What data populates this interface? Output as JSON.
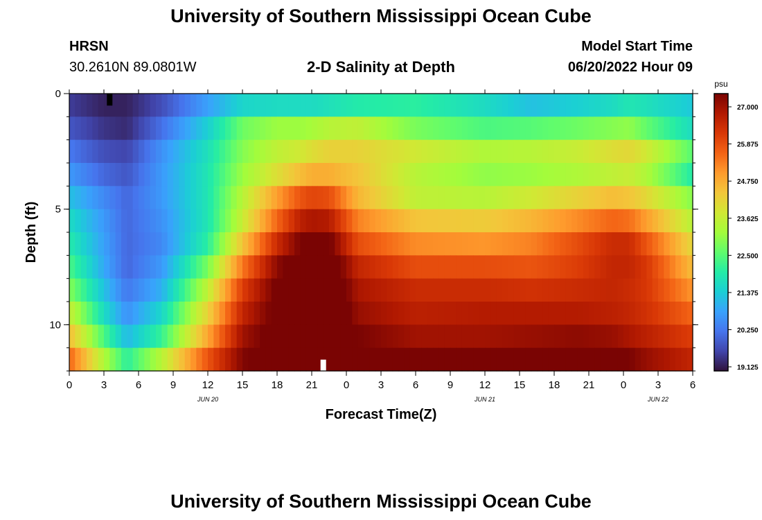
{
  "page": {
    "title": "University of Southern Mississippi Ocean Cube",
    "footer_title": "University of Southern Mississippi Ocean Cube",
    "station": "HRSN",
    "coordinates": "30.2610N  89.0801W",
    "plot_title": "2-D Salinity at Depth",
    "model_start_label": "Model Start Time",
    "model_start_value": "06/20/2022 Hour 09"
  },
  "chart_data": {
    "type": "heatmap",
    "title": "2-D Salinity at Depth",
    "xlabel": "Forecast Time(Z)",
    "ylabel": "Depth (ft)",
    "x_unit": "hours since 06/20 00Z",
    "xlim": [
      0,
      54
    ],
    "ylim": [
      12,
      0
    ],
    "x_ticks": [
      0,
      3,
      6,
      9,
      12,
      15,
      18,
      21,
      24,
      27,
      30,
      33,
      36,
      39,
      42,
      45,
      48,
      51,
      54
    ],
    "x_tick_labels": [
      "0",
      "3",
      "6",
      "9",
      "12",
      "15",
      "18",
      "21",
      "0",
      "3",
      "6",
      "9",
      "12",
      "15",
      "18",
      "21",
      "0",
      "3",
      "6"
    ],
    "date_labels": [
      {
        "x": 12,
        "text": "JUN 20"
      },
      {
        "x": 36,
        "text": "JUN 21"
      },
      {
        "x": 51,
        "text": "JUN 22"
      }
    ],
    "y_ticks": [
      0,
      5,
      10
    ],
    "y_tick_labels": [
      "0",
      "5",
      "10"
    ],
    "y_minor_step": 1,
    "colorbar": {
      "unit": "psu",
      "min": 19.125,
      "max": 27.0,
      "ticks": [
        19.125,
        20.25,
        21.375,
        22.5,
        23.625,
        24.75,
        25.875,
        27.0
      ],
      "tick_labels": [
        "19.125",
        "20.250",
        "21.375",
        "22.500",
        "23.625",
        "24.750",
        "25.875",
        "27.000"
      ],
      "colors": [
        "#30123b",
        "#4145ab",
        "#4675ed",
        "#39a2fc",
        "#1bcfd4",
        "#24eca6",
        "#61fc6c",
        "#a4fc3b",
        "#d1e834",
        "#f3c63a",
        "#fe9b2d",
        "#f36315",
        "#d93806",
        "#b11901",
        "#7a0403"
      ]
    },
    "time_nodes": [
      0,
      3,
      5,
      8,
      12,
      15,
      18,
      20,
      21,
      22.5,
      25,
      30,
      36,
      40,
      44,
      47,
      48.5,
      50,
      54
    ],
    "depth_rows": [
      0.5,
      1.5,
      2.5,
      3.5,
      4.5,
      5.5,
      6.5,
      7.5,
      8.5,
      9.5,
      10.5,
      11.5
    ],
    "salinity": [
      [
        19.6,
        19.3,
        19.3,
        19.8,
        20.8,
        21.5,
        21.6,
        21.6,
        21.6,
        21.7,
        21.9,
        22.0,
        21.6,
        21.2,
        21.4,
        21.6,
        21.8,
        21.7,
        21.3
      ],
      [
        19.9,
        19.5,
        19.4,
        20.2,
        21.4,
        22.6,
        23.0,
        23.0,
        23.1,
        23.3,
        23.4,
        22.7,
        22.3,
        22.4,
        22.6,
        22.8,
        22.9,
        22.5,
        21.6
      ],
      [
        20.3,
        19.8,
        19.7,
        20.6,
        21.7,
        22.8,
        23.4,
        23.6,
        23.8,
        24.0,
        24.0,
        23.6,
        23.2,
        23.3,
        23.5,
        23.8,
        23.9,
        23.6,
        22.4
      ],
      [
        20.7,
        20.1,
        19.9,
        20.7,
        21.8,
        23.0,
        23.8,
        24.3,
        24.5,
        24.5,
        24.2,
        23.3,
        22.9,
        23.0,
        23.2,
        23.4,
        23.5,
        23.2,
        21.9
      ],
      [
        21.2,
        20.5,
        20.1,
        20.7,
        21.8,
        23.3,
        24.7,
        25.5,
        25.7,
        25.6,
        24.4,
        23.4,
        23.3,
        23.6,
        24.0,
        24.3,
        24.2,
        23.9,
        22.8
      ],
      [
        21.6,
        20.7,
        20.1,
        20.6,
        21.8,
        23.5,
        25.3,
        26.3,
        26.5,
        26.4,
        25.0,
        24.2,
        24.1,
        24.4,
        24.9,
        25.3,
        25.2,
        24.7,
        23.3
      ],
      [
        21.9,
        20.8,
        20.1,
        20.5,
        22.0,
        24.2,
        26.1,
        27.0,
        27.3,
        27.1,
        25.6,
        24.9,
        24.8,
        25.0,
        25.6,
        26.1,
        26.1,
        25.5,
        23.9
      ],
      [
        22.3,
        20.9,
        20.1,
        20.7,
        22.7,
        25.1,
        26.8,
        27.5,
        27.7,
        27.5,
        26.2,
        25.6,
        25.6,
        25.5,
        25.8,
        26.2,
        26.2,
        25.9,
        24.3
      ],
      [
        22.8,
        21.2,
        20.3,
        21.0,
        23.4,
        25.8,
        27.1,
        27.7,
        27.9,
        27.7,
        26.5,
        26.1,
        26.1,
        26.0,
        26.1,
        26.2,
        26.1,
        25.9,
        24.8
      ],
      [
        23.5,
        21.6,
        20.6,
        21.5,
        24.0,
        26.2,
        27.2,
        27.8,
        28.0,
        27.8,
        26.7,
        26.3,
        26.4,
        26.4,
        26.4,
        26.3,
        26.2,
        26.0,
        25.3
      ],
      [
        24.3,
        22.3,
        21.1,
        22.1,
        24.6,
        26.6,
        27.3,
        27.8,
        28.0,
        27.9,
        27.0,
        26.6,
        26.6,
        26.7,
        26.8,
        26.7,
        26.5,
        26.3,
        25.8
      ],
      [
        25.3,
        23.2,
        22.0,
        23.3,
        25.5,
        26.9,
        27.6,
        28.0,
        28.1,
        28.0,
        27.5,
        27.2,
        27.2,
        27.3,
        27.5,
        27.3,
        27.0,
        26.7,
        26.2
      ]
    ],
    "markers": [
      {
        "x": 3.5,
        "depth": 0.25,
        "color": "#000000"
      },
      {
        "x": 22,
        "depth": 11.75,
        "color": "#ffffff"
      }
    ]
  }
}
